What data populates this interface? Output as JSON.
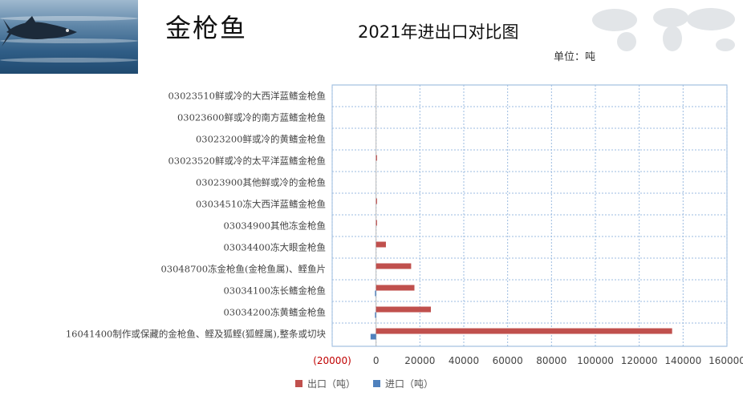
{
  "header": {
    "product_title": "金枪鱼",
    "chart_title": "2021年进出口对比图",
    "unit_label": "单位：吨"
  },
  "chart_data": {
    "type": "bar",
    "orientation": "horizontal",
    "title": "2021年进出口对比图",
    "unit": "单位：吨",
    "categories": [
      "03023510鲜或冷的大西洋蓝鳍金枪鱼",
      "03023600鲜或冷的南方蓝鳍金枪鱼",
      "03023200鲜或冷的黄鳍金枪鱼",
      "03023520鲜或冷的太平洋蓝鳍金枪鱼",
      "03023900其他鲜或冷的金枪鱼",
      "03034510冻大西洋蓝鳍金枪鱼",
      "03034900其他冻金枪鱼",
      "03034400冻大眼金枪鱼",
      "03048700冻金枪鱼(金枪鱼属)、鲣鱼片",
      "03034100冻长鳍金枪鱼",
      "03034200冻黄鳍金枪鱼",
      "16041400制作或保藏的金枪鱼、鲣及狐鲣(狐鲣属),整条或切块"
    ],
    "series": [
      {
        "name": "出口（吨）",
        "color": "#c0504d",
        "values": [
          0,
          0,
          0,
          200,
          0,
          150,
          300,
          4500,
          16000,
          17500,
          25000,
          135000
        ]
      },
      {
        "name": "进口（吨）",
        "color": "#4f81bd",
        "values": [
          0,
          0,
          0,
          0,
          0,
          0,
          0,
          0,
          0,
          500,
          500,
          2500
        ]
      }
    ],
    "xlim": [
      -20000,
      160000
    ],
    "xticks": [
      -20000,
      0,
      20000,
      40000,
      60000,
      80000,
      100000,
      120000,
      140000,
      160000
    ],
    "xtick_labels": [
      "(20000)",
      "0",
      "20000",
      "40000",
      "60000",
      "80000",
      "100000",
      "120000",
      "140000",
      "160000"
    ],
    "grid": true,
    "legend_position": "bottom"
  }
}
